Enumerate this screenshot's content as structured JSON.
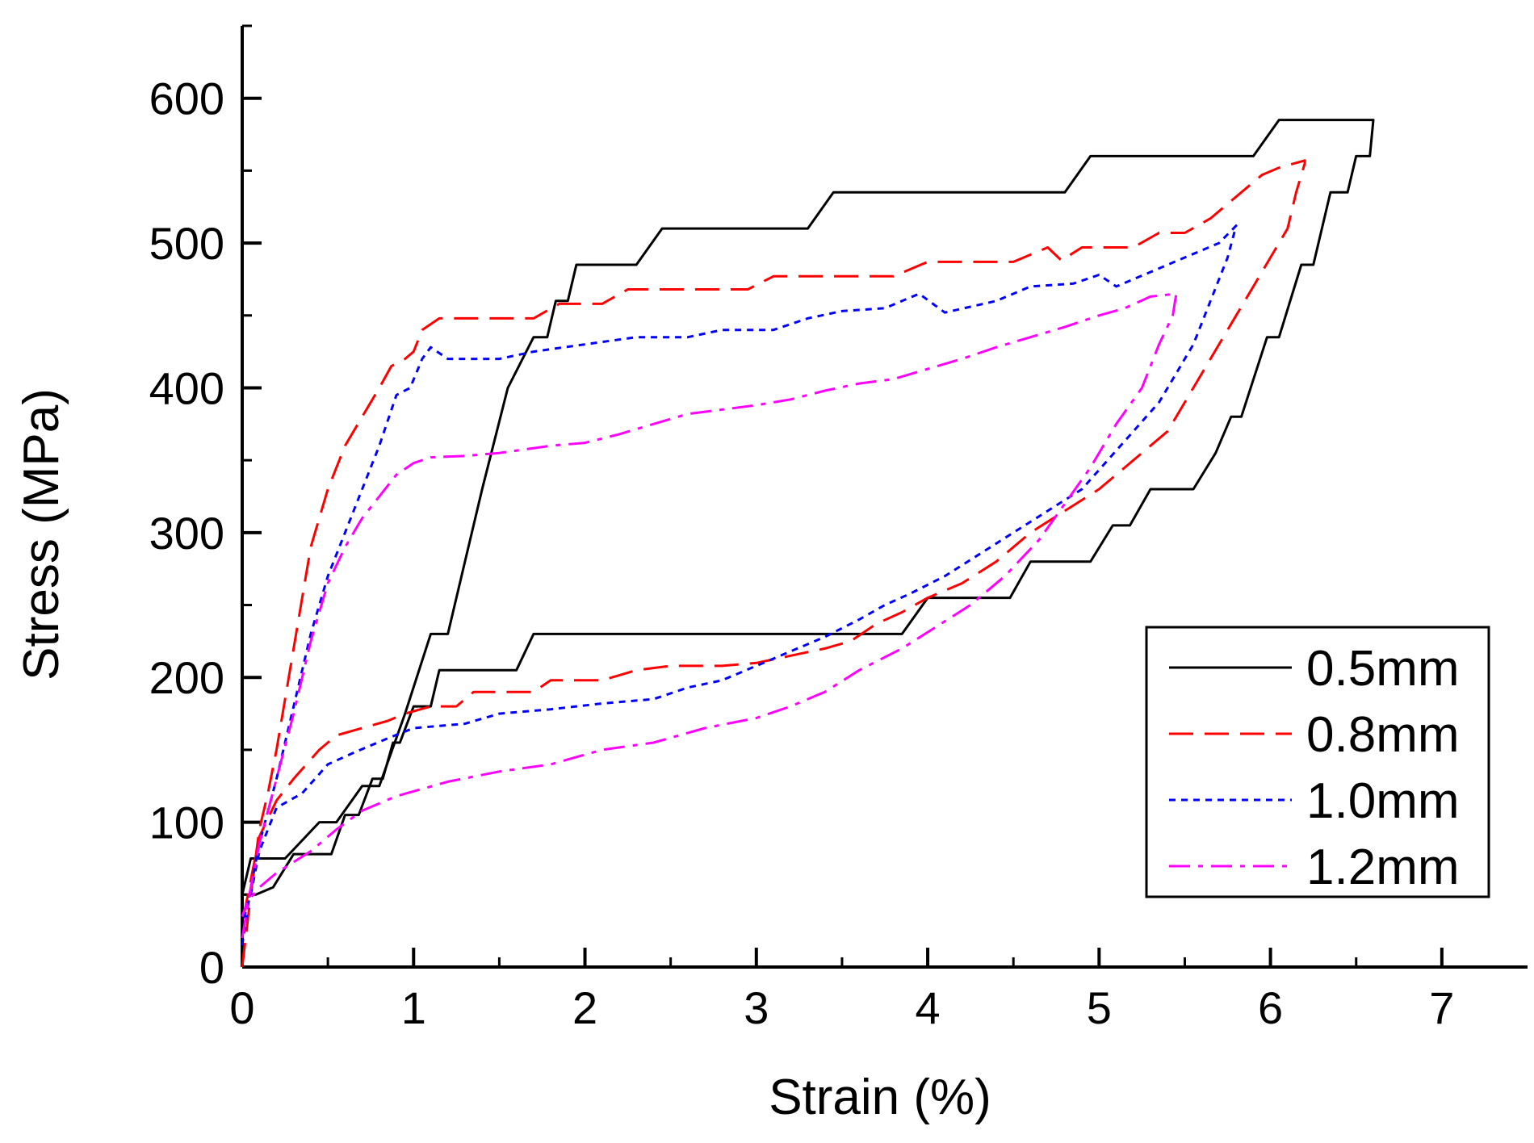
{
  "chart_data": {
    "type": "line",
    "title": "",
    "xlabel": "Strain (%)",
    "ylabel": "Stress (MPa)",
    "xlim": [
      0,
      7.5
    ],
    "ylim": [
      0,
      650
    ],
    "x_ticks": [
      0,
      1,
      2,
      3,
      4,
      5,
      6,
      7
    ],
    "x_tick_labels": [
      "0",
      "1",
      "2",
      "3",
      "4",
      "5",
      "6",
      "7"
    ],
    "y_ticks": [
      0,
      100,
      200,
      300,
      400,
      500,
      600
    ],
    "y_tick_labels": [
      "0",
      "100",
      "200",
      "300",
      "400",
      "500",
      "600"
    ],
    "legend_position": "bottom-right",
    "series": [
      {
        "name": "0.5mm",
        "color": "#000000",
        "style": "solid",
        "points": [
          [
            0,
            50
          ],
          [
            0.05,
            75
          ],
          [
            0.25,
            75
          ],
          [
            0.45,
            100
          ],
          [
            0.55,
            100
          ],
          [
            0.7,
            125
          ],
          [
            0.8,
            125
          ],
          [
            0.95,
            175
          ],
          [
            1.1,
            230
          ],
          [
            1.2,
            230
          ],
          [
            1.3,
            280
          ],
          [
            1.4,
            330
          ],
          [
            1.55,
            400
          ],
          [
            1.7,
            435
          ],
          [
            1.78,
            435
          ],
          [
            1.83,
            460
          ],
          [
            1.9,
            460
          ],
          [
            1.95,
            485
          ],
          [
            2.2,
            485
          ],
          [
            2.3,
            485
          ],
          [
            2.45,
            510
          ],
          [
            3.3,
            510
          ],
          [
            3.45,
            535
          ],
          [
            4.8,
            535
          ],
          [
            4.95,
            560
          ],
          [
            5.9,
            560
          ],
          [
            6.05,
            585
          ],
          [
            6.6,
            585
          ],
          [
            6.6,
            585
          ],
          [
            6.58,
            560
          ],
          [
            6.5,
            560
          ],
          [
            6.45,
            535
          ],
          [
            6.35,
            535
          ],
          [
            6.25,
            485
          ],
          [
            6.18,
            485
          ],
          [
            6.05,
            435
          ],
          [
            5.98,
            435
          ],
          [
            5.83,
            380
          ],
          [
            5.77,
            380
          ],
          [
            5.68,
            355
          ],
          [
            5.55,
            330
          ],
          [
            5.5,
            330
          ],
          [
            5.3,
            330
          ],
          [
            5.18,
            305
          ],
          [
            5.08,
            305
          ],
          [
            4.95,
            280
          ],
          [
            4.8,
            280
          ],
          [
            4.6,
            280
          ],
          [
            4.48,
            255
          ],
          [
            4.3,
            255
          ],
          [
            4.1,
            255
          ],
          [
            4.0,
            255
          ],
          [
            3.85,
            230
          ],
          [
            3.5,
            230
          ],
          [
            2.0,
            230
          ],
          [
            1.7,
            230
          ],
          [
            1.6,
            205
          ],
          [
            1.15,
            205
          ],
          [
            1.1,
            180
          ],
          [
            1.0,
            180
          ],
          [
            0.92,
            155
          ],
          [
            0.88,
            155
          ],
          [
            0.82,
            130
          ],
          [
            0.76,
            130
          ],
          [
            0.68,
            105
          ],
          [
            0.6,
            105
          ],
          [
            0.52,
            78
          ],
          [
            0.3,
            78
          ],
          [
            0.18,
            55
          ],
          [
            0.08,
            50
          ],
          [
            0,
            50
          ]
        ]
      },
      {
        "name": "0.8mm",
        "color": "#ff0000",
        "style": "dashed",
        "points": [
          [
            0,
            0
          ],
          [
            0.05,
            50
          ],
          [
            0.1,
            95
          ],
          [
            0.15,
            120
          ],
          [
            0.2,
            150
          ],
          [
            0.3,
            220
          ],
          [
            0.4,
            290
          ],
          [
            0.5,
            330
          ],
          [
            0.6,
            360
          ],
          [
            0.7,
            380
          ],
          [
            0.8,
            400
          ],
          [
            0.87,
            415
          ],
          [
            0.95,
            420
          ],
          [
            1.0,
            425
          ],
          [
            1.05,
            440
          ],
          [
            1.15,
            448
          ],
          [
            1.3,
            448
          ],
          [
            1.7,
            448
          ],
          [
            1.85,
            458
          ],
          [
            2.1,
            458
          ],
          [
            2.25,
            468
          ],
          [
            2.6,
            468
          ],
          [
            2.95,
            468
          ],
          [
            3.1,
            477
          ],
          [
            3.6,
            477
          ],
          [
            3.8,
            477
          ],
          [
            4.0,
            487
          ],
          [
            4.5,
            487
          ],
          [
            4.7,
            497
          ],
          [
            4.78,
            488
          ],
          [
            4.9,
            497
          ],
          [
            5.2,
            497
          ],
          [
            5.35,
            507
          ],
          [
            5.5,
            507
          ],
          [
            5.65,
            517
          ],
          [
            5.75,
            527
          ],
          [
            5.85,
            537
          ],
          [
            5.95,
            547
          ],
          [
            6.05,
            552
          ],
          [
            6.2,
            557
          ],
          [
            6.2,
            555
          ],
          [
            6.15,
            535
          ],
          [
            6.1,
            510
          ],
          [
            6.0,
            490
          ],
          [
            5.9,
            470
          ],
          [
            5.8,
            450
          ],
          [
            5.7,
            430
          ],
          [
            5.6,
            410
          ],
          [
            5.5,
            390
          ],
          [
            5.4,
            370
          ],
          [
            5.3,
            360
          ],
          [
            5.15,
            345
          ],
          [
            5.0,
            330
          ],
          [
            4.8,
            315
          ],
          [
            4.6,
            300
          ],
          [
            4.4,
            280
          ],
          [
            4.2,
            265
          ],
          [
            4.0,
            255
          ],
          [
            3.85,
            245
          ],
          [
            3.7,
            237
          ],
          [
            3.55,
            225
          ],
          [
            3.4,
            220
          ],
          [
            3.2,
            215
          ],
          [
            3.0,
            210
          ],
          [
            2.8,
            208
          ],
          [
            2.5,
            208
          ],
          [
            2.3,
            205
          ],
          [
            2.1,
            198
          ],
          [
            1.8,
            198
          ],
          [
            1.7,
            190
          ],
          [
            1.35,
            190
          ],
          [
            1.25,
            180
          ],
          [
            1.1,
            180
          ],
          [
            0.95,
            175
          ],
          [
            0.85,
            170
          ],
          [
            0.7,
            165
          ],
          [
            0.55,
            160
          ],
          [
            0.45,
            150
          ],
          [
            0.3,
            130
          ],
          [
            0.2,
            115
          ],
          [
            0.1,
            90
          ],
          [
            0.05,
            60
          ],
          [
            0,
            30
          ]
        ]
      },
      {
        "name": "1.0mm",
        "color": "#0000ff",
        "style": "dotted",
        "points": [
          [
            0,
            15
          ],
          [
            0.05,
            55
          ],
          [
            0.1,
            85
          ],
          [
            0.2,
            130
          ],
          [
            0.3,
            180
          ],
          [
            0.4,
            230
          ],
          [
            0.5,
            270
          ],
          [
            0.6,
            300
          ],
          [
            0.7,
            330
          ],
          [
            0.8,
            360
          ],
          [
            0.9,
            395
          ],
          [
            0.98,
            400
          ],
          [
            1.05,
            420
          ],
          [
            1.1,
            428
          ],
          [
            1.2,
            420
          ],
          [
            1.5,
            420
          ],
          [
            1.7,
            425
          ],
          [
            2.0,
            430
          ],
          [
            2.3,
            435
          ],
          [
            2.6,
            435
          ],
          [
            2.8,
            440
          ],
          [
            3.1,
            440
          ],
          [
            3.3,
            448
          ],
          [
            3.5,
            453
          ],
          [
            3.75,
            455
          ],
          [
            3.95,
            465
          ],
          [
            4.1,
            452
          ],
          [
            4.4,
            460
          ],
          [
            4.6,
            470
          ],
          [
            4.85,
            472
          ],
          [
            5.0,
            478
          ],
          [
            5.1,
            470
          ],
          [
            5.3,
            480
          ],
          [
            5.5,
            490
          ],
          [
            5.7,
            500
          ],
          [
            5.8,
            512
          ],
          [
            5.75,
            490
          ],
          [
            5.65,
            460
          ],
          [
            5.55,
            430
          ],
          [
            5.45,
            410
          ],
          [
            5.35,
            390
          ],
          [
            5.2,
            370
          ],
          [
            5.05,
            350
          ],
          [
            4.9,
            330
          ],
          [
            4.7,
            315
          ],
          [
            4.5,
            300
          ],
          [
            4.3,
            285
          ],
          [
            4.1,
            270
          ],
          [
            3.9,
            258
          ],
          [
            3.75,
            250
          ],
          [
            3.6,
            240
          ],
          [
            3.4,
            228
          ],
          [
            3.2,
            218
          ],
          [
            3.0,
            208
          ],
          [
            2.8,
            198
          ],
          [
            2.6,
            193
          ],
          [
            2.4,
            185
          ],
          [
            2.1,
            182
          ],
          [
            1.8,
            178
          ],
          [
            1.5,
            175
          ],
          [
            1.3,
            168
          ],
          [
            1.0,
            165
          ],
          [
            0.85,
            158
          ],
          [
            0.65,
            148
          ],
          [
            0.5,
            140
          ],
          [
            0.35,
            120
          ],
          [
            0.2,
            110
          ],
          [
            0.1,
            80
          ],
          [
            0.05,
            50
          ],
          [
            0,
            30
          ]
        ]
      },
      {
        "name": "1.2mm",
        "color": "#ff00ff",
        "style": "dashdot",
        "points": [
          [
            0,
            20
          ],
          [
            0.05,
            55
          ],
          [
            0.1,
            85
          ],
          [
            0.2,
            130
          ],
          [
            0.3,
            175
          ],
          [
            0.4,
            225
          ],
          [
            0.5,
            265
          ],
          [
            0.6,
            290
          ],
          [
            0.7,
            310
          ],
          [
            0.8,
            325
          ],
          [
            0.9,
            340
          ],
          [
            1.0,
            348
          ],
          [
            1.1,
            352
          ],
          [
            1.3,
            353
          ],
          [
            1.5,
            355
          ],
          [
            1.8,
            360
          ],
          [
            2.0,
            362
          ],
          [
            2.2,
            368
          ],
          [
            2.4,
            375
          ],
          [
            2.6,
            382
          ],
          [
            2.8,
            385
          ],
          [
            3.0,
            388
          ],
          [
            3.2,
            392
          ],
          [
            3.4,
            398
          ],
          [
            3.6,
            403
          ],
          [
            3.8,
            406
          ],
          [
            4.0,
            413
          ],
          [
            4.2,
            420
          ],
          [
            4.4,
            428
          ],
          [
            4.6,
            435
          ],
          [
            4.8,
            442
          ],
          [
            5.0,
            450
          ],
          [
            5.15,
            455
          ],
          [
            5.3,
            463
          ],
          [
            5.45,
            465
          ],
          [
            5.43,
            450
          ],
          [
            5.35,
            430
          ],
          [
            5.25,
            400
          ],
          [
            5.1,
            375
          ],
          [
            4.95,
            345
          ],
          [
            4.8,
            320
          ],
          [
            4.65,
            295
          ],
          [
            4.45,
            270
          ],
          [
            4.25,
            250
          ],
          [
            4.05,
            235
          ],
          [
            3.85,
            220
          ],
          [
            3.6,
            205
          ],
          [
            3.4,
            190
          ],
          [
            3.2,
            180
          ],
          [
            3.0,
            172
          ],
          [
            2.7,
            165
          ],
          [
            2.4,
            155
          ],
          [
            2.1,
            150
          ],
          [
            1.8,
            140
          ],
          [
            1.5,
            135
          ],
          [
            1.2,
            128
          ],
          [
            0.9,
            118
          ],
          [
            0.7,
            108
          ],
          [
            0.55,
            95
          ],
          [
            0.4,
            80
          ],
          [
            0.2,
            65
          ],
          [
            0.1,
            55
          ],
          [
            0.03,
            45
          ],
          [
            0,
            35
          ]
        ]
      }
    ]
  }
}
